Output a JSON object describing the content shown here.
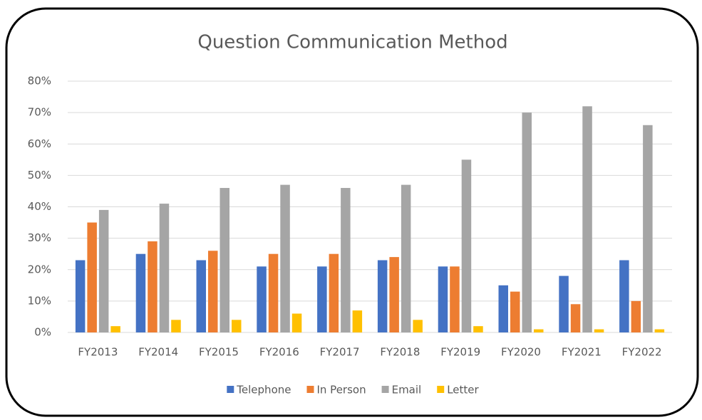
{
  "chart_data": {
    "type": "bar",
    "title": "Question Communication Method",
    "categories": [
      "FY2013",
      "FY2014",
      "FY2015",
      "FY2016",
      "FY2017",
      "FY2018",
      "FY2019",
      "FY2020",
      "FY2021",
      "FY2022"
    ],
    "series": [
      {
        "name": "Telephone",
        "color": "#4472c4",
        "values": [
          23,
          25,
          23,
          21,
          21,
          23,
          21,
          15,
          18,
          23
        ]
      },
      {
        "name": "In Person",
        "color": "#ed7d31",
        "values": [
          35,
          29,
          26,
          25,
          25,
          24,
          21,
          13,
          9,
          10
        ]
      },
      {
        "name": "Email",
        "color": "#a5a5a5",
        "values": [
          39,
          41,
          46,
          47,
          46,
          47,
          55,
          70,
          72,
          66
        ]
      },
      {
        "name": "Letter",
        "color": "#ffc000",
        "values": [
          2,
          4,
          4,
          6,
          7,
          4,
          2,
          1,
          1,
          1
        ]
      }
    ],
    "ylim": [
      0,
      80
    ],
    "yticks": [
      {
        "value": 0,
        "label": "0%"
      },
      {
        "value": 10,
        "label": "10%"
      },
      {
        "value": 20,
        "label": "20%"
      },
      {
        "value": 30,
        "label": "30%"
      },
      {
        "value": 40,
        "label": "40%"
      },
      {
        "value": 50,
        "label": "50%"
      },
      {
        "value": 60,
        "label": "60%"
      },
      {
        "value": 70,
        "label": "70%"
      },
      {
        "value": 80,
        "label": "80%"
      }
    ],
    "grid": true,
    "legend": "bottom"
  }
}
